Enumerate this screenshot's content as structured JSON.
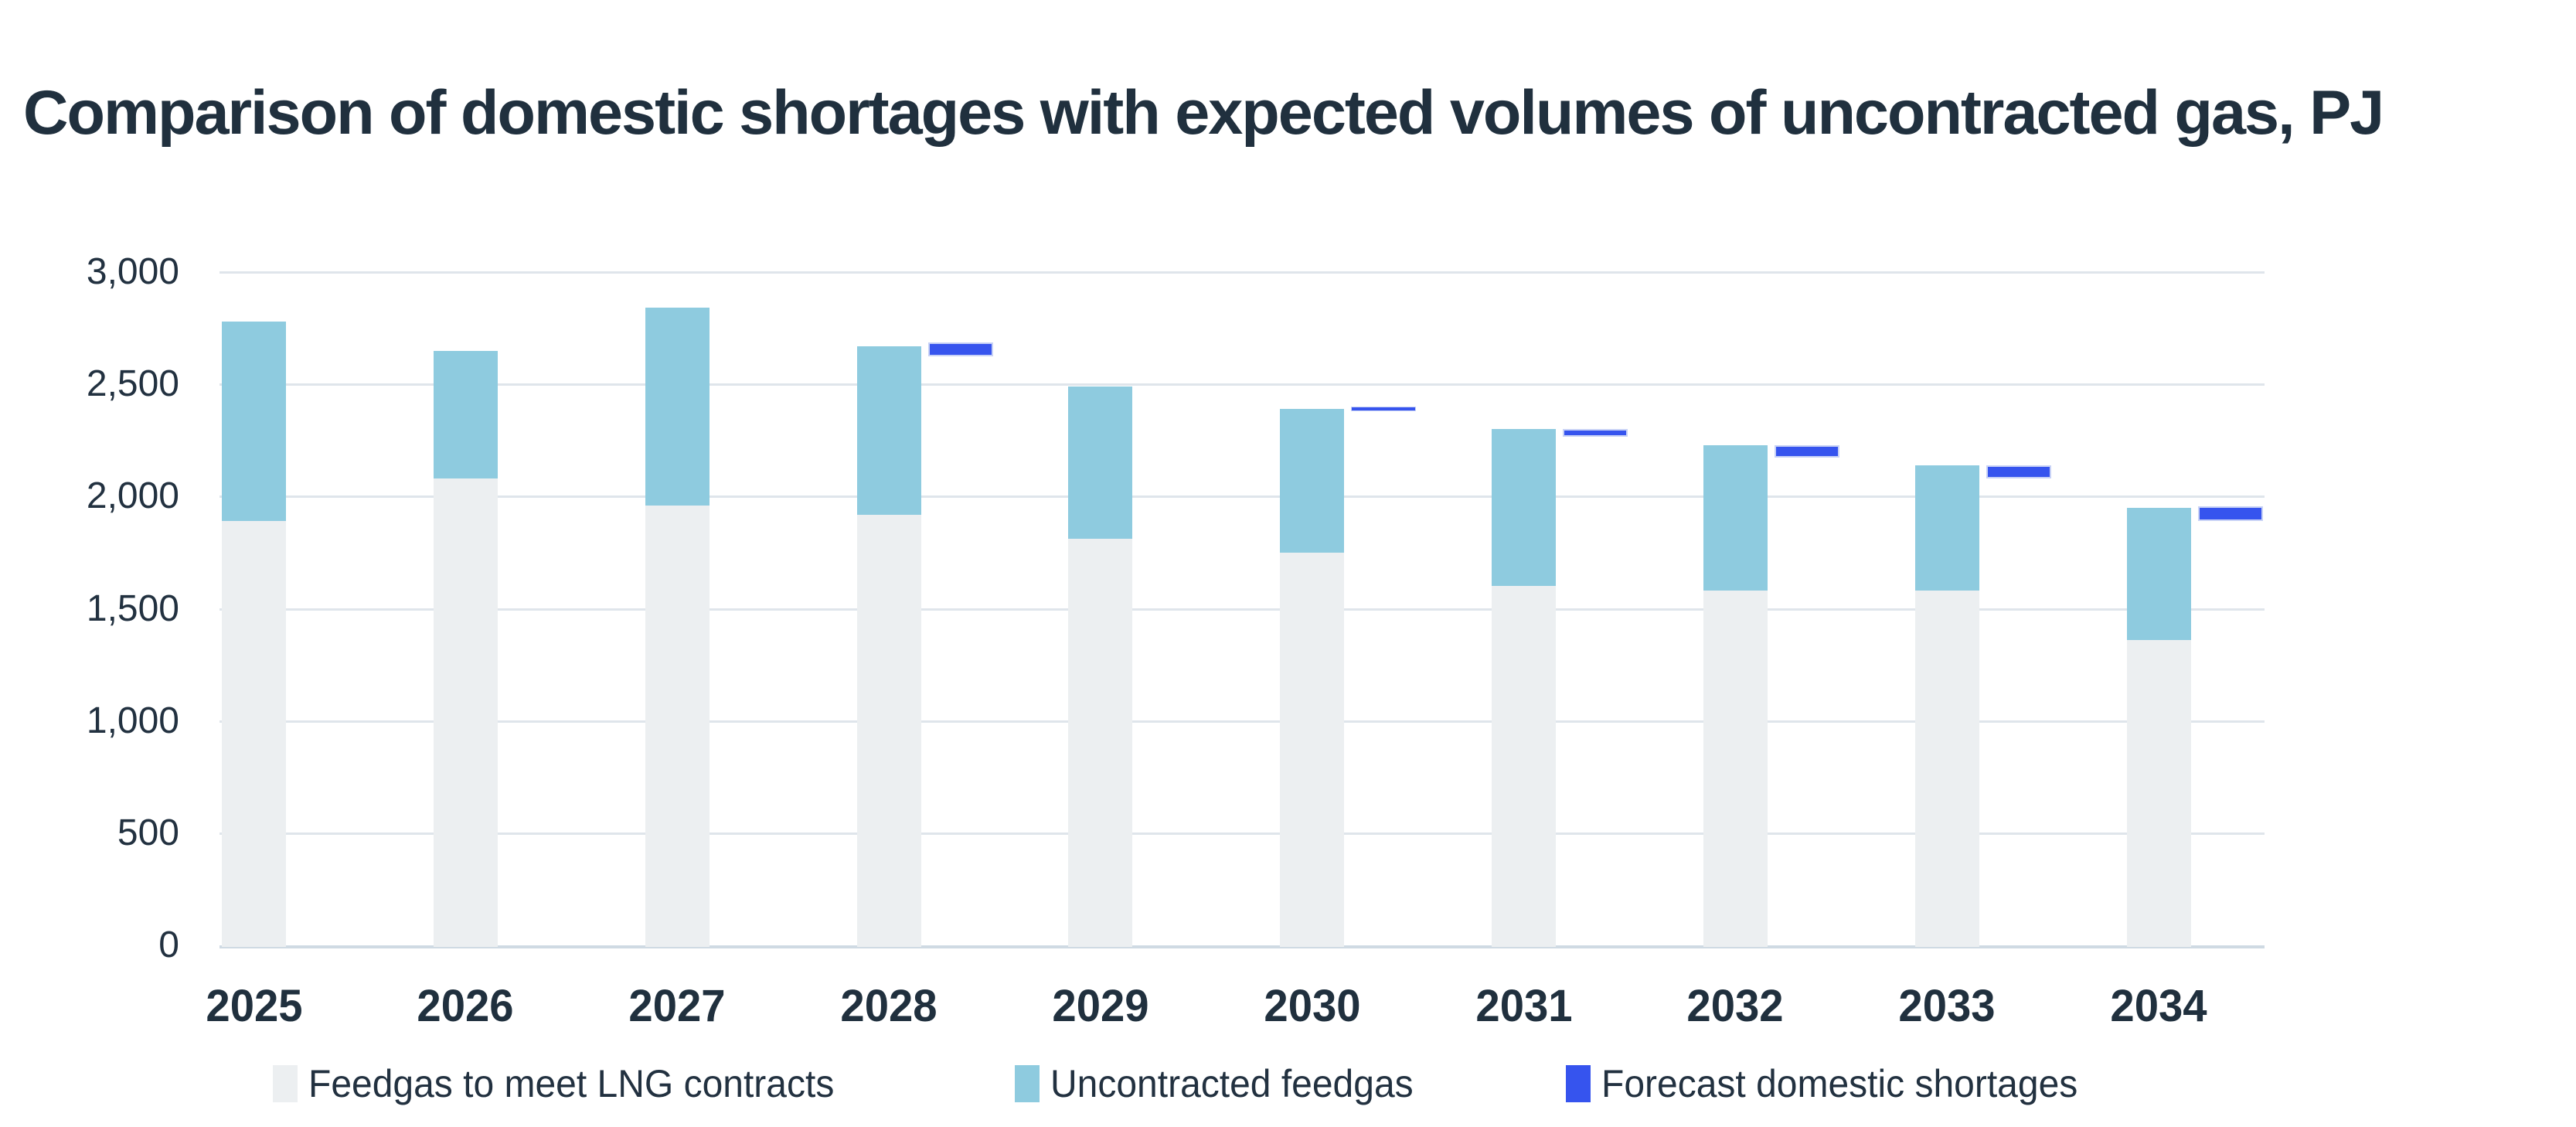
{
  "title": "Comparison of domestic shortages with expected volumes of uncontracted gas, PJ",
  "legend": {
    "feedgas_label": "Feedgas to meet LNG contracts",
    "uncontracted_label": "Uncontracted feedgas",
    "shortages_label": "Forecast domestic shortages"
  },
  "colors": {
    "feedgas": "#ECEFF1",
    "uncontracted": "#8ECBDF",
    "shortage": "#3654EE",
    "shortage_halo": "#C8D2F6",
    "text": "#20303E",
    "gridline": "#DFE5EB",
    "axis_line": "#CFDAE3"
  },
  "chart_data": {
    "type": "bar",
    "stacked": true,
    "title": "Comparison of domestic shortages with expected volumes of uncontracted gas, PJ",
    "unit": "PJ",
    "categories": [
      "2025",
      "2026",
      "2027",
      "2028",
      "2029",
      "2030",
      "2031",
      "2032",
      "2033",
      "2034"
    ],
    "series": [
      {
        "name": "Feedgas to meet LNG contracts",
        "color": "#ECEFF1",
        "values": [
          1890,
          2080,
          1960,
          1920,
          1810,
          1750,
          1600,
          1580,
          1580,
          1360
        ]
      },
      {
        "name": "Uncontracted feedgas",
        "color": "#8ECBDF",
        "values": [
          890,
          570,
          880,
          750,
          680,
          640,
          700,
          650,
          560,
          590
        ]
      }
    ],
    "stack_totals": [
      2780,
      2650,
      2840,
      2670,
      2490,
      2390,
      2300,
      2230,
      2140,
      1950
    ],
    "markers": {
      "name": "Forecast domestic shortages",
      "color": "#3654EE",
      "levels": [
        null,
        null,
        null,
        2655,
        null,
        2390,
        2285,
        2200,
        2110,
        1925
      ],
      "sizes_pj": [
        null,
        null,
        null,
        60,
        null,
        10,
        35,
        55,
        60,
        65
      ]
    },
    "y_axis": {
      "min": 0,
      "max": 3000,
      "step": 500,
      "tick_labels": [
        "0",
        "500",
        "1,000",
        "1,500",
        "2,000",
        "2,500",
        "3,000"
      ]
    },
    "x_axis": {
      "label": "",
      "tick_labels": [
        "2025",
        "2026",
        "2027",
        "2028",
        "2029",
        "2030",
        "2031",
        "2032",
        "2033",
        "2034"
      ]
    },
    "grid": true,
    "legend_position": "bottom"
  }
}
